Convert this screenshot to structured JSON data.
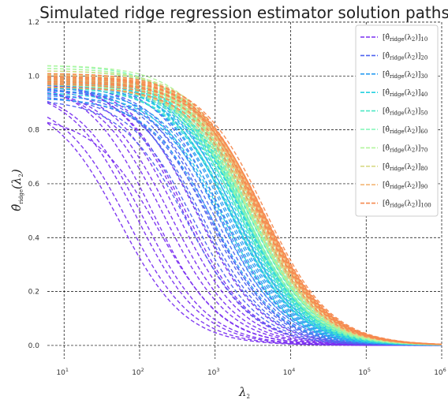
{
  "chart_data": {
    "type": "line",
    "title": "Simulated ridge regression estimator solution paths",
    "xlabel": "λ₂",
    "ylabel": "θ̂ridge(λ₂)",
    "xscale": "log",
    "xlim": [
      6,
      1000000
    ],
    "ylim": [
      -0.05,
      1.2
    ],
    "x_ticks": [
      {
        "value": 10,
        "base": "10",
        "exp": "1"
      },
      {
        "value": 100,
        "base": "10",
        "exp": "2"
      },
      {
        "value": 1000,
        "base": "10",
        "exp": "3"
      },
      {
        "value": 10000,
        "base": "10",
        "exp": "4"
      },
      {
        "value": 100000,
        "base": "10",
        "exp": "5"
      },
      {
        "value": 1000000,
        "base": "10",
        "exp": "6"
      }
    ],
    "y_ticks": [
      "0.0",
      "0.2",
      "0.4",
      "0.6",
      "0.8",
      "1.0",
      "1.2"
    ],
    "grid": true,
    "line_style": "dashed",
    "legend_position": "top-right",
    "series": [
      {
        "name": "[θ̂ridge(λ₂)]10",
        "sub": "10",
        "color": "#7a2ff0",
        "curves": [
          [
            0.855,
            180
          ],
          [
            0.915,
            55
          ],
          [
            0.92,
            70
          ],
          [
            0.955,
            110
          ],
          [
            0.96,
            260
          ],
          [
            0.965,
            210
          ],
          [
            0.97,
            320
          ],
          [
            0.98,
            420
          ],
          [
            0.985,
            150
          ],
          [
            0.99,
            380
          ],
          [
            0.96,
            90
          ],
          [
            0.975,
            580
          ]
        ]
      },
      {
        "name": "[θ̂ridge(λ₂)]20",
        "sub": "20",
        "color": "#4e63f0",
        "curves": [
          [
            0.915,
            430
          ],
          [
            0.92,
            900
          ],
          [
            0.93,
            520
          ],
          [
            0.94,
            700
          ],
          [
            0.95,
            1000
          ],
          [
            0.96,
            620
          ],
          [
            0.965,
            780
          ],
          [
            0.97,
            1100
          ],
          [
            0.98,
            830
          ],
          [
            0.99,
            1200
          ]
        ]
      },
      {
        "name": "[θ̂ridge(λ₂)]30",
        "sub": "30",
        "color": "#2a9df2",
        "curves": [
          [
            0.92,
            950
          ],
          [
            0.93,
            1250
          ],
          [
            0.95,
            1350
          ],
          [
            0.96,
            1100
          ],
          [
            0.97,
            1500
          ],
          [
            0.975,
            1400
          ],
          [
            0.98,
            1650
          ],
          [
            0.99,
            1550
          ],
          [
            1.0,
            1750
          ],
          [
            0.985,
            1800
          ]
        ]
      },
      {
        "name": "[θ̂ridge(λ₂)]40",
        "sub": "40",
        "color": "#26d1e0",
        "curves": [
          [
            0.94,
            1300
          ],
          [
            0.96,
            1700
          ],
          [
            0.97,
            1900
          ],
          [
            0.98,
            1600
          ],
          [
            0.99,
            2050
          ],
          [
            1.0,
            2200
          ],
          [
            0.975,
            2300
          ],
          [
            0.985,
            1950
          ],
          [
            0.995,
            2400
          ],
          [
            1.01,
            2100
          ]
        ]
      },
      {
        "name": "[θ̂ridge(λ₂)]50",
        "sub": "50",
        "color": "#4ee8c5",
        "curves": [
          [
            0.96,
            1800
          ],
          [
            0.97,
            2150
          ],
          [
            0.98,
            2350
          ],
          [
            0.99,
            2500
          ],
          [
            1.0,
            2000
          ],
          [
            1.01,
            2600
          ],
          [
            0.975,
            2750
          ],
          [
            0.995,
            2300
          ],
          [
            1.005,
            2900
          ],
          [
            0.985,
            2450
          ]
        ]
      },
      {
        "name": "[θ̂ridge(λ₂)]60",
        "sub": "60",
        "color": "#7ff5b5",
        "curves": [
          [
            0.97,
            2200
          ],
          [
            0.98,
            2500
          ],
          [
            0.99,
            2700
          ],
          [
            1.0,
            2900
          ],
          [
            1.01,
            2400
          ],
          [
            1.02,
            3100
          ],
          [
            1.03,
            2650
          ],
          [
            1.04,
            2300
          ],
          [
            0.995,
            3000
          ],
          [
            1.005,
            2800
          ]
        ]
      },
      {
        "name": "[θ̂ridge(λ₂)]70",
        "sub": "70",
        "color": "#b1f59c",
        "curves": [
          [
            0.97,
            2500
          ],
          [
            0.99,
            2900
          ],
          [
            1.0,
            3100
          ],
          [
            1.01,
            2700
          ],
          [
            1.02,
            3300
          ],
          [
            1.03,
            2800
          ],
          [
            1.04,
            3000
          ],
          [
            0.98,
            3400
          ],
          [
            1.0,
            3600
          ],
          [
            0.99,
            3200
          ]
        ]
      },
      {
        "name": "[θ̂ridge(λ₂)]80",
        "sub": "80",
        "color": "#d8da86",
        "curves": [
          [
            0.96,
            3000
          ],
          [
            0.98,
            3300
          ],
          [
            1.0,
            3500
          ],
          [
            1.01,
            3200
          ],
          [
            1.02,
            3700
          ],
          [
            0.99,
            3800
          ],
          [
            1.0,
            3400
          ],
          [
            0.97,
            3900
          ],
          [
            1.01,
            3600
          ],
          [
            0.985,
            4000
          ]
        ]
      },
      {
        "name": "[θ̂ridge(λ₂)]90",
        "sub": "90",
        "color": "#f4b675",
        "curves": [
          [
            0.96,
            3300
          ],
          [
            0.97,
            3600
          ],
          [
            0.98,
            3800
          ],
          [
            1.0,
            4000
          ],
          [
            1.01,
            3700
          ],
          [
            0.99,
            4200
          ],
          [
            1.0,
            3500
          ],
          [
            0.975,
            4400
          ],
          [
            0.995,
            4100
          ],
          [
            1.005,
            3900
          ]
        ]
      },
      {
        "name": "[θ̂ridge(λ₂)]100",
        "sub": "100",
        "color": "#f5894f",
        "curves": [
          [
            0.96,
            3500
          ],
          [
            0.97,
            3800
          ],
          [
            0.98,
            4100
          ],
          [
            0.99,
            4300
          ],
          [
            1.0,
            3700
          ],
          [
            1.01,
            4000
          ],
          [
            0.975,
            4500
          ],
          [
            0.995,
            4200
          ],
          [
            1.0,
            4600
          ],
          [
            0.985,
            3900
          ]
        ]
      }
    ]
  }
}
